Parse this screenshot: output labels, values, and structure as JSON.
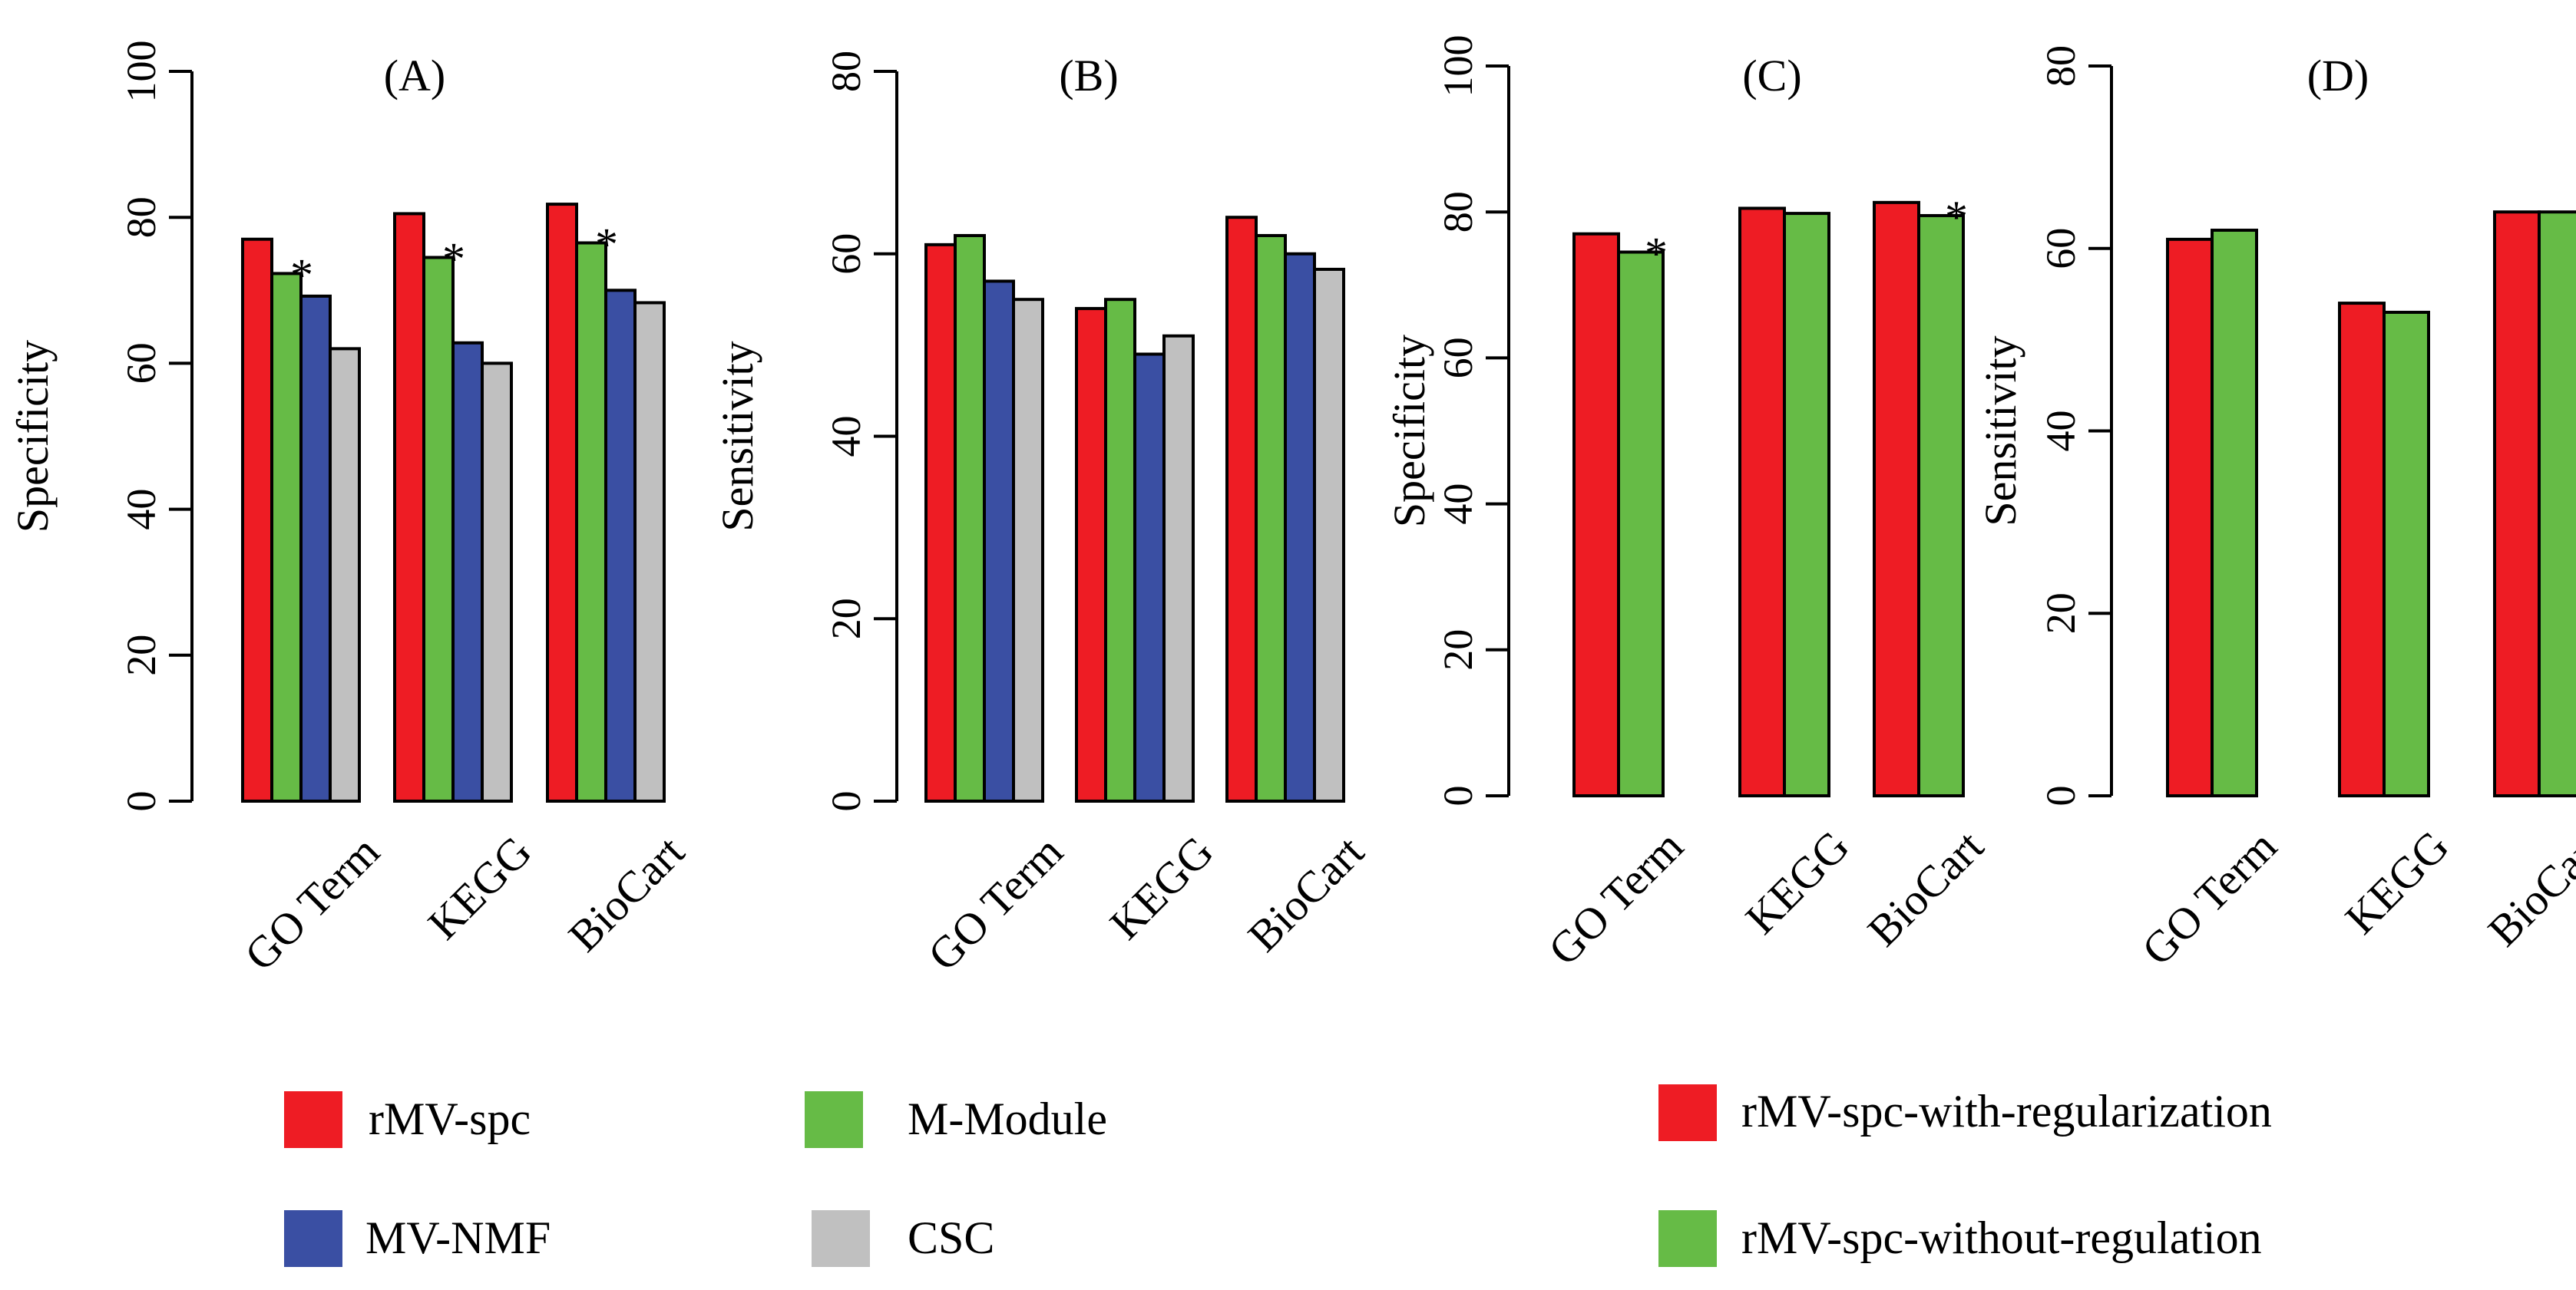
{
  "colors": {
    "red": "#ee1c24",
    "green": "#66bb46",
    "blue": "#3a4fa3",
    "gray": "#c0c0c0"
  },
  "chart_data": [
    {
      "type": "bar",
      "title": "(A)",
      "ylabel": "Specificity",
      "ylim": [
        0,
        100
      ],
      "yticks": [
        "0",
        "20",
        "40",
        "60",
        "80",
        "100"
      ],
      "categories": [
        "GO Term",
        "KEGG",
        "BioCart"
      ],
      "series": [
        {
          "name": "rMV-spc",
          "color": "red",
          "values": [
            77,
            80.5,
            81.8
          ]
        },
        {
          "name": "M-Module",
          "color": "green",
          "values": [
            72.3,
            74.5,
            76.5
          ]
        },
        {
          "name": "MV-NMF",
          "color": "blue",
          "values": [
            69.2,
            62.8,
            70
          ]
        },
        {
          "name": "CSC",
          "color": "gray",
          "values": [
            62,
            60,
            68.3
          ]
        }
      ],
      "annotations": [
        {
          "text": "*",
          "category": 0,
          "series": 1
        },
        {
          "text": "*",
          "category": 1,
          "series": 1
        },
        {
          "text": "*",
          "category": 2,
          "series": 1
        }
      ]
    },
    {
      "type": "bar",
      "title": "(B)",
      "ylabel": "Sensitivity",
      "ylim": [
        0,
        80
      ],
      "yticks": [
        "0",
        "20",
        "40",
        "60",
        "80"
      ],
      "categories": [
        "GO Term",
        "KEGG",
        "BioCart"
      ],
      "series": [
        {
          "name": "rMV-spc",
          "color": "red",
          "values": [
            61,
            54,
            64
          ]
        },
        {
          "name": "M-Module",
          "color": "green",
          "values": [
            62,
            55,
            62
          ]
        },
        {
          "name": "MV-NMF",
          "color": "blue",
          "values": [
            57,
            49,
            60
          ]
        },
        {
          "name": "CSC",
          "color": "gray",
          "values": [
            55,
            51,
            58.3
          ]
        }
      ],
      "annotations": []
    },
    {
      "type": "bar",
      "title": "(C)",
      "ylabel": "Specificity",
      "ylim": [
        0,
        100
      ],
      "yticks": [
        "0",
        "20",
        "40",
        "60",
        "80",
        "100"
      ],
      "categories": [
        "GO Term",
        "KEGG",
        "BioCart"
      ],
      "series": [
        {
          "name": "rMV-spc-with-regularization",
          "color": "red",
          "values": [
            77,
            80.5,
            81.3
          ]
        },
        {
          "name": "rMV-spc-without-regulation",
          "color": "green",
          "values": [
            74.5,
            79.8,
            79.5
          ]
        }
      ],
      "annotations": [
        {
          "text": "*",
          "category": 0,
          "series": 1
        },
        {
          "text": "*",
          "category": 2,
          "series": 1
        }
      ]
    },
    {
      "type": "bar",
      "title": "(D)",
      "ylabel": "Sensitivity",
      "ylim": [
        0,
        80
      ],
      "yticks": [
        "0",
        "20",
        "40",
        "60",
        "80"
      ],
      "categories": [
        "GO Term",
        "KEGG",
        "BioCart"
      ],
      "series": [
        {
          "name": "rMV-spc-with-regularization",
          "color": "red",
          "values": [
            61,
            54,
            64
          ]
        },
        {
          "name": "rMV-spc-without-regulation",
          "color": "green",
          "values": [
            62,
            53,
            64
          ]
        }
      ],
      "annotations": []
    }
  ],
  "legends": [
    {
      "items": [
        {
          "label": "rMV-spc",
          "color": "red"
        },
        {
          "label": "M-Module",
          "color": "green"
        },
        {
          "label": "MV-NMF",
          "color": "blue"
        },
        {
          "label": "CSC",
          "color": "gray"
        }
      ]
    },
    {
      "items": [
        {
          "label": "rMV-spc-with-regularization",
          "color": "red"
        },
        {
          "label": "rMV-spc-without-regulation",
          "color": "green"
        }
      ]
    }
  ]
}
